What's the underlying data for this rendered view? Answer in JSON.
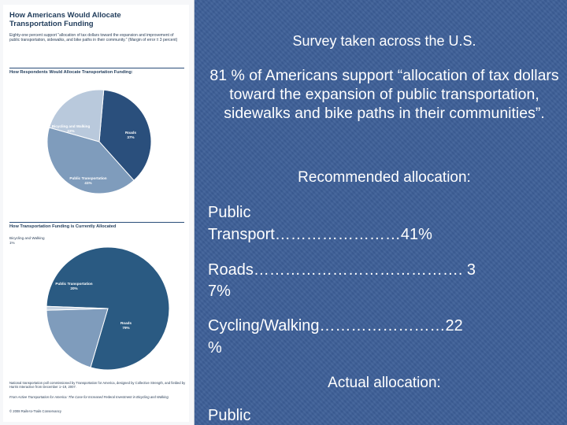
{
  "left_figure": {
    "title_line1": "How Americans Would Allocate",
    "title_line2": "Transportation Funding",
    "intro": "Eighty-one percent support “allocation of tax dollars toward the expansion and improvement of public transportation, sidewalks, and bike paths in their community.” (Margin of error ± 3 percent)",
    "section1_heading": "How Respondents Would Allocate Transportation Funding:",
    "section2_heading": "How Transportation Funding is Currently Allocated",
    "pie1": {
      "slices": [
        {
          "label": "Roads",
          "pct": "37%",
          "value": 37,
          "color": "#2a4f7c"
        },
        {
          "label": "Public Transportation",
          "pct": "41%",
          "value": 41,
          "color": "#7f9cbc"
        },
        {
          "label": "Bicycling and Walking",
          "pct": "22%",
          "value": 22,
          "color": "#b9c9dc"
        }
      ]
    },
    "pie2": {
      "slices": [
        {
          "label": "Roads",
          "pct": "79%",
          "value": 79,
          "color": "#2a5a82"
        },
        {
          "label": "Public Transportation",
          "pct": "20%",
          "value": 20,
          "color": "#7f9cbc"
        },
        {
          "label": "Bicycling and Walking",
          "pct": "1%",
          "value": 1,
          "color": "#c6d3e2"
        }
      ]
    },
    "source_line1": "National transportation poll commissioned by Transportation for America, designed by Collective Strength, and fielded by Harris Interactive from December 1–19, 2007.",
    "source_line2": "From Active Transportation for America: The Case for Increased Federal Investment in Bicycling and Walking",
    "source_line3": "© 2008 Rails-to-Trails Conservancy"
  },
  "slide": {
    "line1": "Survey taken across the U.S.",
    "para": "81 % of Americans support “allocation of tax dollars toward the expansion of public transportation, sidewalks and bike paths in their communities”.",
    "recommended_heading": "Recommended allocation:",
    "public_a": "Public",
    "public_b": "Transport……………………41%",
    "roads_a": "Roads…………………………………. 3",
    "roads_b": "7%",
    "cycling_a": "Cycling/Walking……………………22",
    "cycling_b": "%",
    "actual_heading": "Actual allocation:",
    "public2": "Public"
  }
}
